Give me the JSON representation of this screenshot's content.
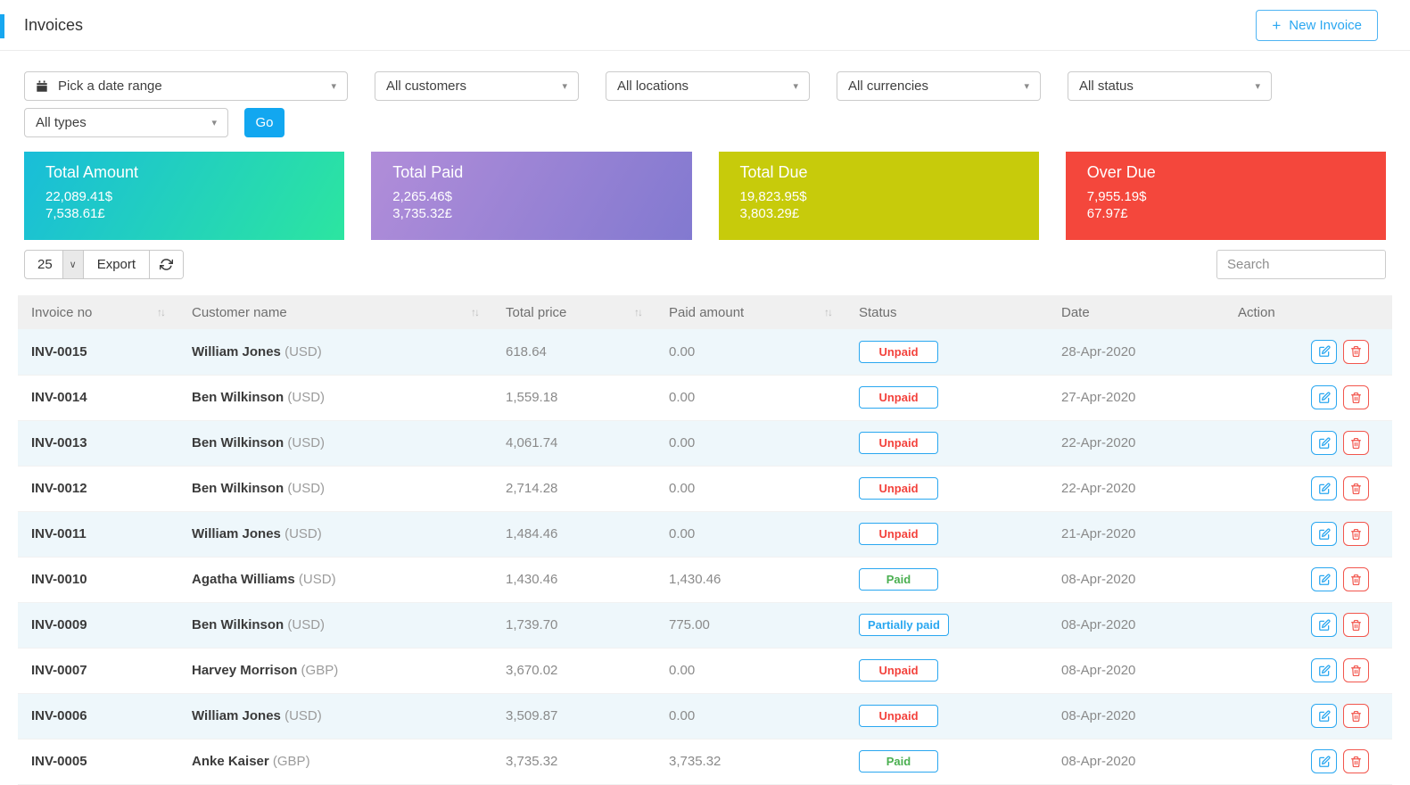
{
  "header": {
    "title": "Invoices",
    "new_invoice_label": "New Invoice"
  },
  "icons": {
    "plus": "+",
    "caret": "▾",
    "select_chevron": "∨",
    "sort": "↑↓"
  },
  "colors": {
    "accent_blue": "#17a7f0",
    "go_button_blue": "#12a7f0",
    "unpaid_red": "#f3423c",
    "paid_green": "#4aaf50",
    "partial_blue": "#2aa7f0",
    "delete_red": "#f2564d"
  },
  "filters": {
    "date_range_label": "Pick a date range",
    "customers_label": "All customers",
    "locations_label": "All locations",
    "currencies_label": "All currencies",
    "status_label": "All status",
    "types_label": "All types",
    "go_label": "Go"
  },
  "summary_cards": [
    {
      "title": "Total Amount",
      "usd": "22,089.41$",
      "gbp": "7,538.61£",
      "bg_from": "#19bdd9",
      "bg_to": "#2ce5a0"
    },
    {
      "title": "Total Paid",
      "usd": "2,265.46$",
      "gbp": "3,735.32£",
      "bg_from": "#b18dd9",
      "bg_to": "#8279d0"
    },
    {
      "title": "Total Due",
      "usd": "19,823.95$",
      "gbp": "3,803.29£",
      "bg_from": "#c7cb0b",
      "bg_to": "#c7cb0b"
    },
    {
      "title": "Over Due",
      "usd": "7,955.19$",
      "gbp": "67.97£",
      "bg_from": "#f4473c",
      "bg_to": "#f4473c"
    }
  ],
  "table_controls": {
    "page_size": "25",
    "export_label": "Export",
    "search_placeholder": "Search"
  },
  "table": {
    "columns": [
      {
        "label": "Invoice no",
        "sortable": true
      },
      {
        "label": "Customer name",
        "sortable": true
      },
      {
        "label": "Total price",
        "sortable": true
      },
      {
        "label": "Paid amount",
        "sortable": true
      },
      {
        "label": "Status",
        "sortable": false
      },
      {
        "label": "Date",
        "sortable": false
      },
      {
        "label": "Action",
        "sortable": false
      }
    ],
    "rows": [
      {
        "invoice_no": "INV-0015",
        "customer": "William Jones",
        "currency": "(USD)",
        "total_price": "618.64",
        "paid_amount": "0.00",
        "status": "Unpaid",
        "status_type": "unpaid",
        "date": "28-Apr-2020"
      },
      {
        "invoice_no": "INV-0014",
        "customer": "Ben Wilkinson",
        "currency": "(USD)",
        "total_price": "1,559.18",
        "paid_amount": "0.00",
        "status": "Unpaid",
        "status_type": "unpaid",
        "date": "27-Apr-2020"
      },
      {
        "invoice_no": "INV-0013",
        "customer": "Ben Wilkinson",
        "currency": "(USD)",
        "total_price": "4,061.74",
        "paid_amount": "0.00",
        "status": "Unpaid",
        "status_type": "unpaid",
        "date": "22-Apr-2020"
      },
      {
        "invoice_no": "INV-0012",
        "customer": "Ben Wilkinson",
        "currency": "(USD)",
        "total_price": "2,714.28",
        "paid_amount": "0.00",
        "status": "Unpaid",
        "status_type": "unpaid",
        "date": "22-Apr-2020"
      },
      {
        "invoice_no": "INV-0011",
        "customer": "William Jones",
        "currency": "(USD)",
        "total_price": "1,484.46",
        "paid_amount": "0.00",
        "status": "Unpaid",
        "status_type": "unpaid",
        "date": "21-Apr-2020"
      },
      {
        "invoice_no": "INV-0010",
        "customer": "Agatha Williams",
        "currency": "(USD)",
        "total_price": "1,430.46",
        "paid_amount": "1,430.46",
        "status": "Paid",
        "status_type": "paid",
        "date": "08-Apr-2020"
      },
      {
        "invoice_no": "INV-0009",
        "customer": "Ben Wilkinson",
        "currency": "(USD)",
        "total_price": "1,739.70",
        "paid_amount": "775.00",
        "status": "Partially paid",
        "status_type": "partial",
        "date": "08-Apr-2020"
      },
      {
        "invoice_no": "INV-0007",
        "customer": "Harvey Morrison",
        "currency": "(GBP)",
        "total_price": "3,670.02",
        "paid_amount": "0.00",
        "status": "Unpaid",
        "status_type": "unpaid",
        "date": "08-Apr-2020"
      },
      {
        "invoice_no": "INV-0006",
        "customer": "William Jones",
        "currency": "(USD)",
        "total_price": "3,509.87",
        "paid_amount": "0.00",
        "status": "Unpaid",
        "status_type": "unpaid",
        "date": "08-Apr-2020"
      },
      {
        "invoice_no": "INV-0005",
        "customer": "Anke Kaiser",
        "currency": "(GBP)",
        "total_price": "3,735.32",
        "paid_amount": "3,735.32",
        "status": "Paid",
        "status_type": "paid",
        "date": "08-Apr-2020"
      }
    ]
  }
}
